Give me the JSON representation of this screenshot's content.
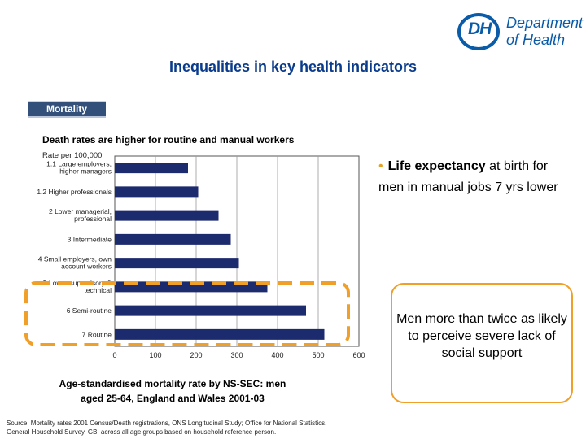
{
  "logo": {
    "abbr": "DH",
    "line1": "Department",
    "line2": "of Health"
  },
  "title": "Inequalities in key health indicators",
  "tab_label": "Mortality",
  "subtitle": "Death rates are higher for routine and manual workers",
  "bullet": {
    "bold": "Life expectancy",
    "rest": " at birth  for men in manual jobs 7 yrs lower"
  },
  "callout_text": "Men more than twice as likely to perceive severe lack of social support",
  "caption": "Age-standardised mortality rate by NS-SEC: men aged 25-64, England and Wales 2001-03",
  "source": {
    "line1": "Source: Mortality rates 2001 Census/Death registrations, ONS Longitudinal Study; Office for National Statistics.",
    "line2": "General Household Survey, GB, across all age groups based on household reference person."
  },
  "colors": {
    "bar": "#1c2a6e",
    "title": "#0b3c8c",
    "highlight": "#f0a028",
    "tab": "#32507a"
  },
  "chart_data": {
    "type": "bar",
    "orientation": "horizontal",
    "ylabel": "Rate per 100,000",
    "categories": [
      [
        "1.1 Large employers,",
        "higher managers"
      ],
      [
        "1.2 Higher professionals"
      ],
      [
        "2 Lower managerial,",
        "professional"
      ],
      [
        "3 Intermediate"
      ],
      [
        "4 Small employers, own",
        "account workers"
      ],
      [
        "5 Lower supervisory &",
        "technical"
      ],
      [
        "6 Semi-routine"
      ],
      [
        "7 Routine"
      ]
    ],
    "values": [
      180,
      205,
      255,
      285,
      305,
      375,
      470,
      515
    ],
    "xlim": [
      0,
      600
    ],
    "xticks": [
      0,
      100,
      200,
      300,
      400,
      500,
      600
    ],
    "grid": true,
    "highlighted_categories": [
      "5 Lower supervisory & technical",
      "6 Semi-routine",
      "7 Routine"
    ]
  }
}
